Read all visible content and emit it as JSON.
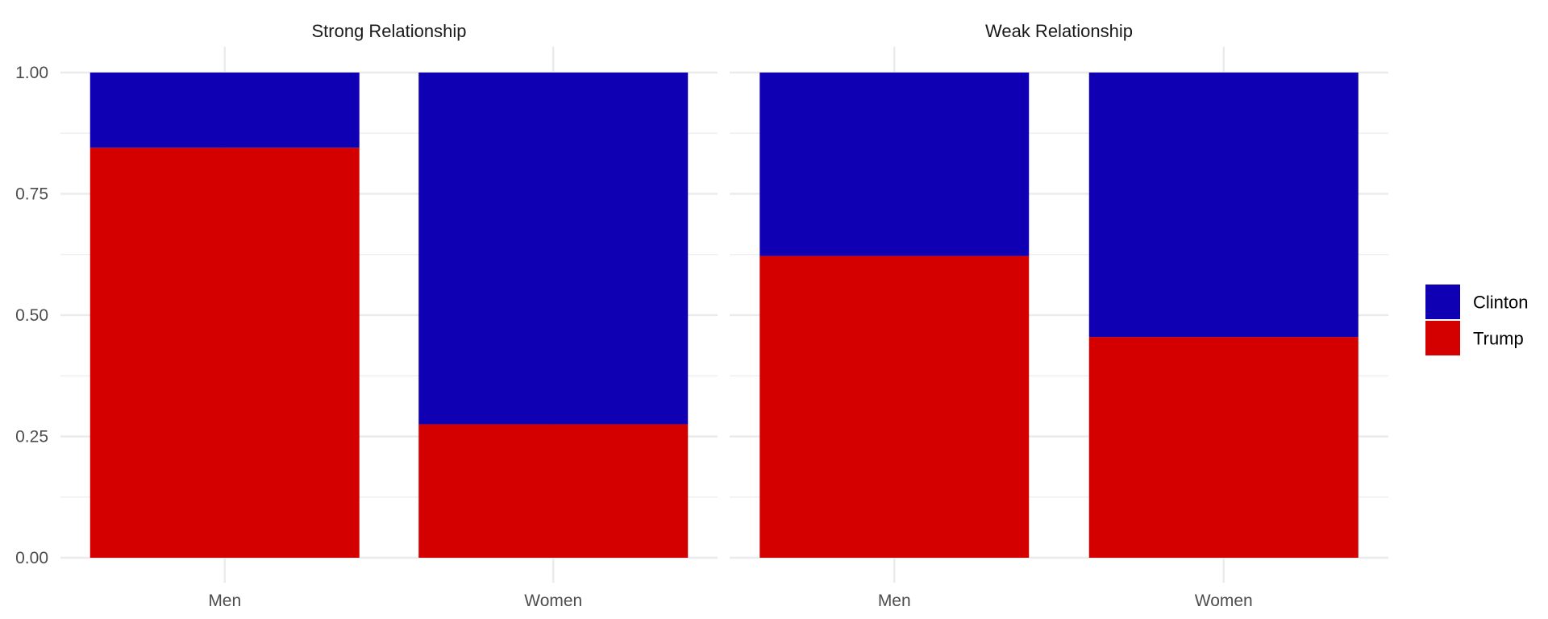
{
  "chart_data": {
    "type": "bar",
    "stacked": true,
    "facets": [
      "Strong Relationship",
      "Weak Relationship"
    ],
    "categories": [
      "Men",
      "Women"
    ],
    "series": [
      {
        "name": "Clinton",
        "color": "#1000b3",
        "values": {
          "Strong Relationship": [
            0.155,
            0.725
          ],
          "Weak Relationship": [
            0.378,
            0.545
          ]
        }
      },
      {
        "name": "Trump",
        "color": "#d40000",
        "values": {
          "Strong Relationship": [
            0.845,
            0.275
          ],
          "Weak Relationship": [
            0.622,
            0.455
          ]
        }
      }
    ],
    "ylim": [
      0,
      1
    ],
    "yticks": [
      "0.00",
      "0.25",
      "0.50",
      "0.75",
      "1.00"
    ],
    "xlabel": "",
    "ylabel": "",
    "grid": true,
    "legend": {
      "position": "right",
      "items": [
        "Clinton",
        "Trump"
      ]
    }
  }
}
